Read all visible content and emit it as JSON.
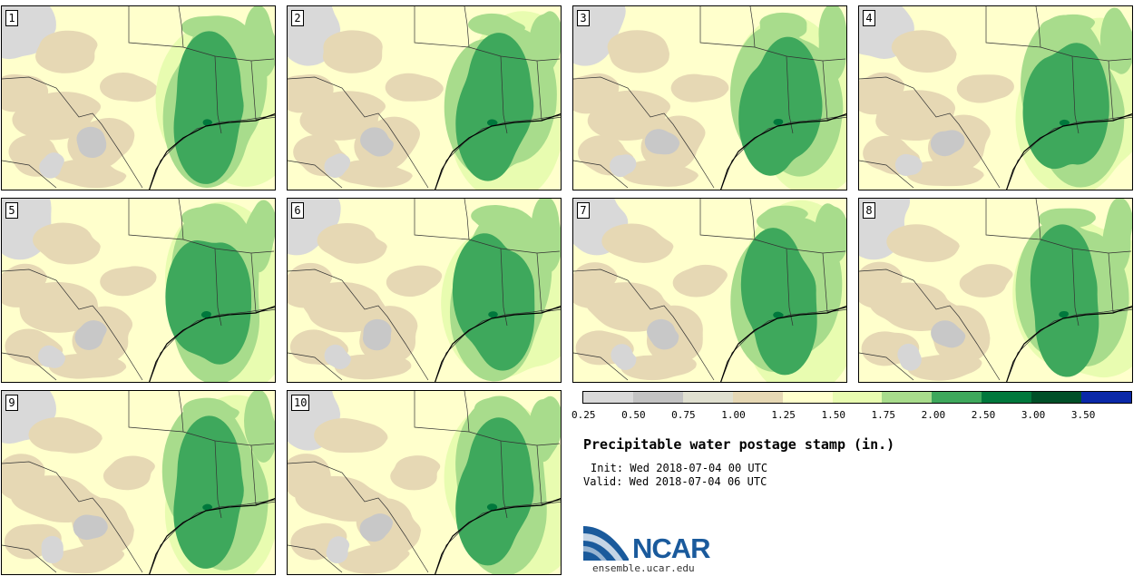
{
  "stamps": [
    {
      "label": "1"
    },
    {
      "label": "2"
    },
    {
      "label": "3"
    },
    {
      "label": "4"
    },
    {
      "label": "5"
    },
    {
      "label": "6"
    },
    {
      "label": "7"
    },
    {
      "label": "8"
    },
    {
      "label": "9"
    },
    {
      "label": "10"
    }
  ],
  "colorbar": {
    "colors": [
      "#d9d9d9",
      "#c3c3c3",
      "#e0e0d0",
      "#e6d8b4",
      "#ffffcc",
      "#e8fcb0",
      "#a8dc8c",
      "#3ea85c",
      "#00783c",
      "#005028",
      "#0a28a8"
    ],
    "ticks": [
      "0.25",
      "0.50",
      "0.75",
      "1.00",
      "1.25",
      "1.50",
      "1.75",
      "2.00",
      "2.50",
      "3.00",
      "3.50"
    ]
  },
  "title": "Precipitable water postage stamp (in.)",
  "init": "Init: Wed 2018-07-04 00 UTC",
  "valid": "Valid: Wed 2018-07-04 06 UTC",
  "logo": {
    "name": "NCAR",
    "url": "ensemble.ucar.edu"
  }
}
